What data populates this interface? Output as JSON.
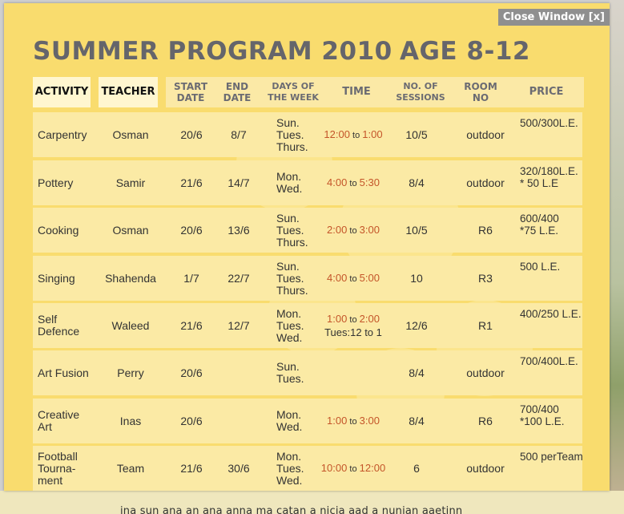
{
  "window": {
    "close_label": "Close Window [x]",
    "title": "SUMMER PROGRAM 2010",
    "age": "AGE  8-12"
  },
  "headers": {
    "activity": "ACTIVITY",
    "teacher": "TEACHER",
    "start_date": "START\nDATE",
    "end_date": "END\nDATE",
    "days": "DAYS OF\nTHE WEEK",
    "time": "TIME",
    "sessions": "NO. OF\nSESSIONS",
    "room": "ROOM\nNO",
    "price": "PRICE"
  },
  "rows": [
    {
      "activity": "Carpentry",
      "teacher": "Osman",
      "start": "20/6",
      "end": "8/7",
      "days": "Sun.\nTues.\nThurs.",
      "time_from": "12:00",
      "time_to": "1:00",
      "time_extra": "",
      "sessions": "10/5",
      "room": "outdoor",
      "price": "500/300L.E."
    },
    {
      "activity": "Pottery",
      "teacher": "Samir",
      "start": "21/6",
      "end": "14/7",
      "days": "Mon.\nWed.",
      "time_from": "4:00",
      "time_to": "5:30",
      "time_extra": "",
      "sessions": "8/4",
      "room": "outdoor",
      "price": "320/180L.E.\n* 50 L.E"
    },
    {
      "activity": "Cooking",
      "teacher": "Osman",
      "start": "20/6",
      "end": "13/6",
      "days": "Sun.\nTues.\nThurs.",
      "time_from": "2:00",
      "time_to": "3:00",
      "time_extra": "",
      "sessions": "10/5",
      "room": "R6",
      "price": "600/400\n*75 L.E."
    },
    {
      "activity": "Singing",
      "teacher": "Shahenda",
      "start": "1/7",
      "end": "22/7",
      "days": "Sun.\nTues.\nThurs.",
      "time_from": "4:00",
      "time_to": "5:00",
      "time_extra": "",
      "sessions": "10",
      "room": "R3",
      "price": "500 L.E."
    },
    {
      "activity": "Self\nDefence",
      "teacher": "Waleed",
      "start": "21/6",
      "end": "12/7",
      "days": "Mon.\nTues.\nWed.",
      "time_from": "1:00",
      "time_to": "2:00",
      "time_extra": "Tues:12 to 1",
      "sessions": "12/6",
      "room": "R1",
      "price": "400/250 L.E."
    },
    {
      "activity": "Art Fusion",
      "teacher": "Perry",
      "start": "20/6",
      "end": "",
      "days": "Sun.\nTues.",
      "time_from": "",
      "time_to": "",
      "time_extra": "",
      "sessions": "8/4",
      "room": "outdoor",
      "price": "700/400L.E."
    },
    {
      "activity": "Creative\nArt",
      "teacher": "Inas",
      "start": "20/6",
      "end": "",
      "days": "Mon.\nWed.",
      "time_from": "1:00",
      "time_to": "3:00",
      "time_extra": "",
      "sessions": "8/4",
      "room": "R6",
      "price": "700/400\n*100 L.E."
    },
    {
      "activity": "Football\nTourna-\nment",
      "teacher": "Team",
      "start": "21/6",
      "end": "30/6",
      "days": "Mon.\nTues.\nWed.",
      "time_from": "10:00",
      "time_to": "12:00",
      "time_extra": "",
      "sessions": "6",
      "room": "outdoor",
      "price": "500 perTeam"
    }
  ],
  "time_connector": "to",
  "footer_peek": "ina sun ana an ana anna ma catan a nicia aad a nunian aaetinn"
}
